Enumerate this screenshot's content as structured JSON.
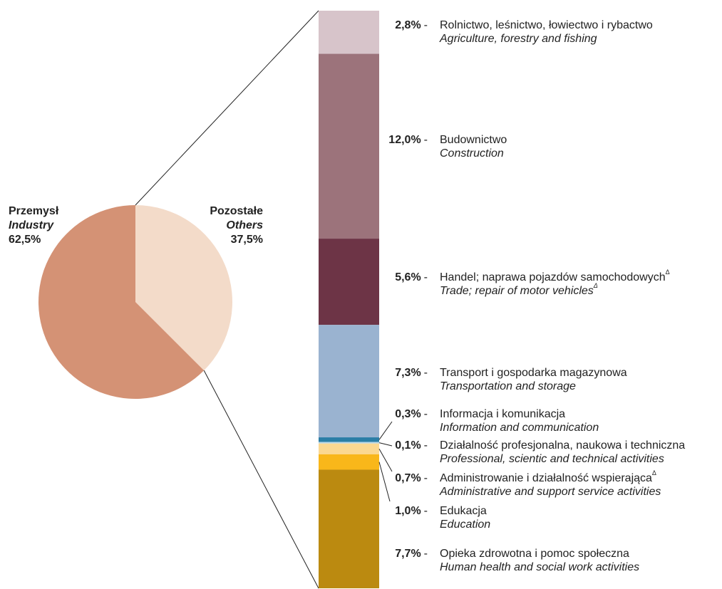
{
  "chart_data": {
    "type": "bar-of-pie",
    "pie": {
      "categories": [
        "Przemysł",
        "Pozostałe"
      ],
      "categories_en": [
        "Industry",
        "Others"
      ],
      "values": [
        62.5,
        37.5
      ],
      "value_labels": [
        "62,5%",
        "37,5%"
      ],
      "colors": [
        "#d49275",
        "#f3dbc9"
      ]
    },
    "bar": {
      "separator": "-",
      "categories": [
        "Rolnictwo, leśnictwo, łowiectwo i rybactwo",
        "Budownictwo",
        "Handel; naprawa pojazdów samochodowych",
        "Transport i gospodarka magazynowa",
        "Informacja i komunikacja",
        "Działalność profesjonalna, naukowa i techniczna",
        "Administrowanie i działalność wspierająca",
        "Edukacja",
        "Opieka zdrowotna i pomoc społeczna"
      ],
      "categories_en": [
        "Agriculture, forestry and fishing",
        "Construction",
        "Trade; repair of motor vehicles",
        "Transportation and storage",
        "Information and communication",
        "Professional, scientic and technical activities",
        "Administrative and support service activities",
        "Education",
        "Human health and social work activities"
      ],
      "superscripts": [
        null,
        null,
        "Δ",
        null,
        null,
        null,
        "Δ",
        null,
        null
      ],
      "superscripts_en": [
        null,
        null,
        "Δ",
        null,
        null,
        null,
        null,
        null,
        null
      ],
      "values": [
        2.8,
        12.0,
        5.6,
        7.3,
        0.3,
        0.1,
        0.7,
        1.0,
        7.7
      ],
      "value_labels": [
        "2,8%",
        "12,0%",
        "5,6%",
        "7,3%",
        "0,3%",
        "0,1%",
        "0,7%",
        "1,0%",
        "7,7%"
      ],
      "colors": [
        "#d7c4ca",
        "#9c737b",
        "#6d3446",
        "#9ab3d0",
        "#2b7ea6",
        "#b9d8e6",
        "#fbd891",
        "#f9b71a",
        "#bb8a10"
      ]
    }
  }
}
